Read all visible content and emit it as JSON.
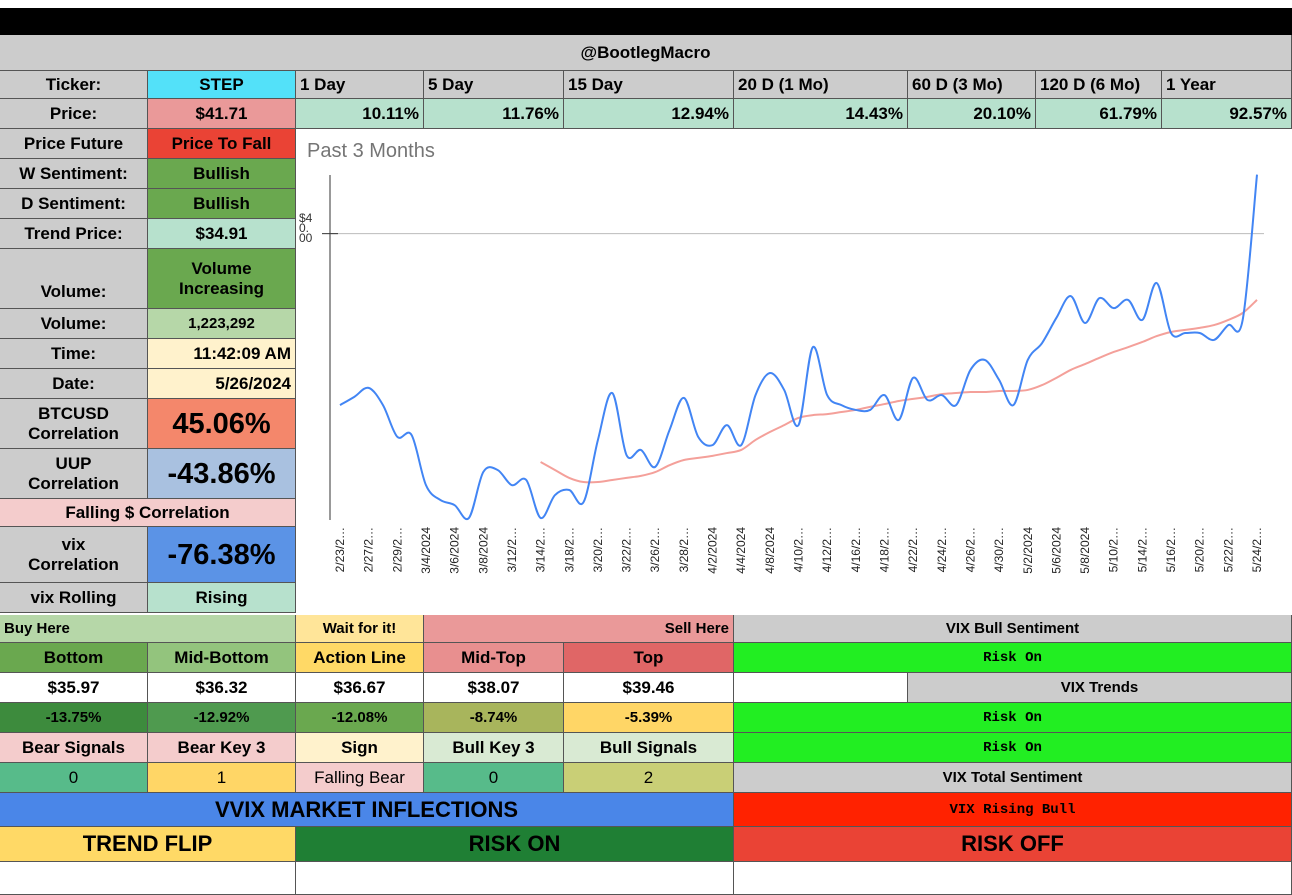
{
  "header": {
    "handle": "@BootlegMacro"
  },
  "ticker": {
    "label": "Ticker:",
    "symbol": "STEP"
  },
  "periods": [
    "1 Day",
    "5 Day",
    "15 Day",
    "20 D (1 Mo)",
    "60 D (3 Mo)",
    "120 D (6 Mo)",
    "1 Year"
  ],
  "price": {
    "label": "Price:",
    "value": "$41.71"
  },
  "changes": [
    "10.11%",
    "11.76%",
    "12.94%",
    "14.43%",
    "20.10%",
    "61.79%",
    "92.57%"
  ],
  "stats": [
    [
      "Price Future",
      "Price To Fall"
    ],
    [
      "W Sentiment:",
      "Bullish"
    ],
    [
      "D Sentiment:",
      "Bullish"
    ],
    [
      "Trend Price:",
      "$34.91"
    ],
    [
      "Volume:",
      "Volume Increasing"
    ],
    [
      "Volume:",
      "1,223,292"
    ],
    [
      "Time:",
      "11:42:09 AM"
    ],
    [
      "Date:",
      "5/26/2024"
    ],
    [
      "BTCUSD Correlation",
      "45.06%"
    ],
    [
      "UUP Correlation",
      "-43.86%"
    ],
    [
      "vix Correlation",
      "-76.38%"
    ],
    [
      "vix Rolling",
      "Rising"
    ]
  ],
  "falling_correlation": "Falling $ Correlation",
  "zones": {
    "buy": "Buy Here",
    "wait": "Wait for it!",
    "sell": "Sell Here",
    "levels": [
      {
        "name": "Bottom",
        "price": "$35.97",
        "change": "-13.75%"
      },
      {
        "name": "Mid-Bottom",
        "price": "$36.32",
        "change": "-12.92%"
      },
      {
        "name": "Action Line",
        "price": "$36.67",
        "change": "-12.08%"
      },
      {
        "name": "Mid-Top",
        "price": "$38.07",
        "change": "-8.74%"
      },
      {
        "name": "Top",
        "price": "$39.46",
        "change": "-5.39%"
      }
    ]
  },
  "signals": {
    "headers": [
      "Bear Signals",
      "Bear Key 3",
      "Sign",
      "Bull Key 3",
      "Bull Signals"
    ],
    "values": [
      0,
      1,
      "Falling Bear",
      0,
      2
    ]
  },
  "vix": {
    "bull_sentiment_title": "VIX Bull Sentiment",
    "bull_sentiment": "Risk On",
    "trends_title": "VIX Trends",
    "trends": [
      "Risk On",
      "Risk On"
    ],
    "total_title": "VIX Total Sentiment",
    "total": "VIX Rising Bull"
  },
  "vvix": {
    "title": "VVIX MARKET INFLECTIONS",
    "columns": [
      "TREND FLIP",
      "RISK ON",
      "RISK OFF"
    ]
  },
  "chart_data": {
    "type": "line",
    "title": "Past 3 Months",
    "categories": [
      "2/23/2…",
      null,
      "2/27/2…",
      null,
      "2/29/2…",
      null,
      "3/4/2024",
      null,
      "3/6/2024",
      null,
      "3/8/2024",
      null,
      "3/12/2…",
      null,
      "3/14/2…",
      null,
      "3/18/2…",
      null,
      "3/20/2…",
      null,
      "3/22/2…",
      null,
      "3/26/2…",
      null,
      "3/28/2…",
      null,
      "4/2/2024",
      null,
      "4/4/2024",
      null,
      "4/8/2024",
      null,
      "4/10/2…",
      null,
      "4/12/2…",
      null,
      "4/16/2…",
      null,
      "4/18/2…",
      null,
      "4/22/2…",
      null,
      "4/24/2…",
      null,
      "4/26/2…",
      null,
      "4/30/2…",
      null,
      "5/2/2024",
      null,
      "5/6/2024",
      null,
      "5/8/2024",
      null,
      "5/10/2…",
      null,
      "5/14/2…",
      null,
      "5/16/2…",
      null,
      "5/20/2…",
      null,
      "5/22/2…",
      null,
      "5/24/2…"
    ],
    "series": [
      {
        "color": "#4285f4",
        "values": [
          35.03,
          35.27,
          35.53,
          35.03,
          34.11,
          34.16,
          32.71,
          32.28,
          32.13,
          31.76,
          33.09,
          33.15,
          32.71,
          32.86,
          31.76,
          32.42,
          32.57,
          32.22,
          34.02,
          35.38,
          33.58,
          33.73,
          33.24,
          34.31,
          35.24,
          34.11,
          33.87,
          34.45,
          33.87,
          35.32,
          35.96,
          35.47,
          34.45,
          36.71,
          35.32,
          35.03,
          34.89,
          34.89,
          35.32,
          34.6,
          35.82,
          35.18,
          35.32,
          35.03,
          36.05,
          36.34,
          35.76,
          35.03,
          36.34,
          36.83,
          37.56,
          38.19,
          37.41,
          38.13,
          37.84,
          38.08,
          37.5,
          38.57,
          37.12,
          37.12,
          37.12,
          36.92,
          37.35,
          37.5,
          41.71
        ]
      },
      {
        "color": "#f4a09a",
        "values": [
          null,
          null,
          null,
          null,
          null,
          null,
          null,
          null,
          null,
          null,
          null,
          null,
          null,
          null,
          33.38,
          33.15,
          32.92,
          32.8,
          32.8,
          32.86,
          32.92,
          32.98,
          33.09,
          33.29,
          33.44,
          33.5,
          33.56,
          33.64,
          33.73,
          34.02,
          34.25,
          34.45,
          34.66,
          34.74,
          34.77,
          34.83,
          34.89,
          34.98,
          35.06,
          35.15,
          35.21,
          35.27,
          35.35,
          35.38,
          35.41,
          35.41,
          35.44,
          35.44,
          35.47,
          35.61,
          35.82,
          36.05,
          36.22,
          36.4,
          36.57,
          36.71,
          36.86,
          37.03,
          37.15,
          37.21,
          37.27,
          37.35,
          37.5,
          37.7,
          38.08
        ]
      }
    ],
    "ylim": [
      31.7,
      41.7
    ],
    "yticks": [
      {
        "value": 40,
        "label": "$40.00"
      }
    ],
    "grid": true
  }
}
